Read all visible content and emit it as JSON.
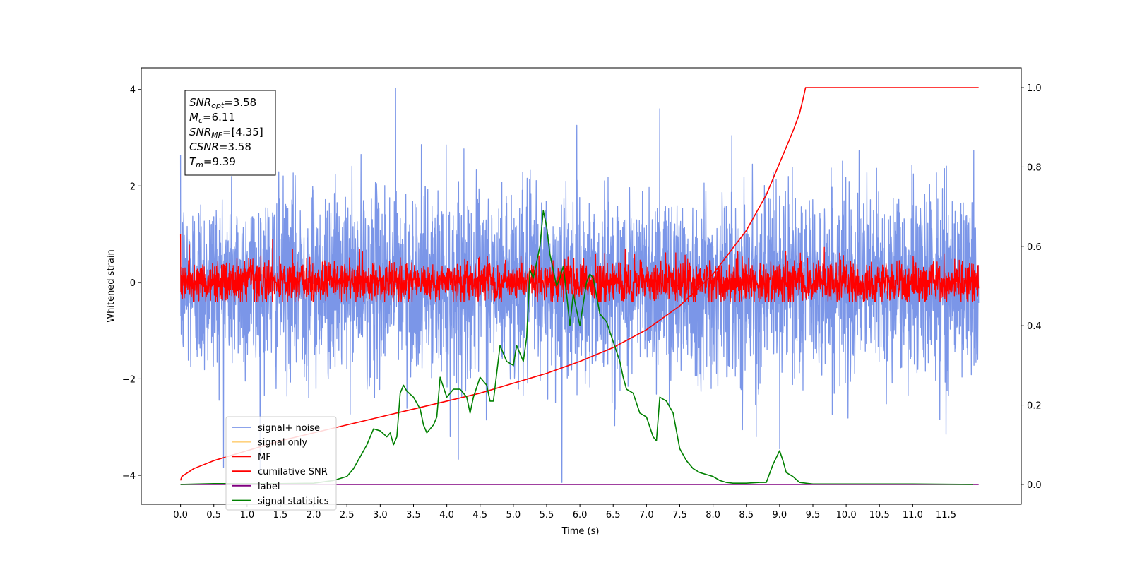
{
  "chart_data": {
    "type": "line",
    "xlabel": "Time (s)",
    "ylabel_left": "Whitened strain",
    "xlim": [
      -0.59,
      12.63
    ],
    "ylim_left": [
      -4.6,
      4.45
    ],
    "ylim_right": [
      -0.05,
      1.05
    ],
    "x_ticks": [
      "0.0",
      "0.5",
      "1.0",
      "1.5",
      "2.0",
      "2.5",
      "3.0",
      "3.5",
      "4.0",
      "4.5",
      "5.0",
      "5.5",
      "6.0",
      "6.5",
      "7.0",
      "7.5",
      "8.0",
      "8.5",
      "9.0",
      "9.5",
      "10.0",
      "10.5",
      "11.0",
      "11.5"
    ],
    "x_tick_values": [
      0,
      0.5,
      1,
      1.5,
      2,
      2.5,
      3,
      3.5,
      4,
      4.5,
      5,
      5.5,
      6,
      6.5,
      7,
      7.5,
      8,
      8.5,
      9,
      9.5,
      10,
      10.5,
      11,
      11.5
    ],
    "y_left_ticks": [
      "4",
      "2",
      "0",
      "−2",
      "−4"
    ],
    "y_left_tick_values": [
      4,
      2,
      0,
      -2,
      -4
    ],
    "y_right_ticks": [
      "1.0",
      "0.8",
      "0.6",
      "0.4",
      "0.2",
      "0.0"
    ],
    "y_right_tick_values": [
      1.0,
      0.8,
      0.6,
      0.4,
      0.2,
      0.0
    ],
    "annotation": {
      "snr_opt": {
        "base": "SNR",
        "sub": "opt",
        "value": "=3.58"
      },
      "mc": {
        "base": "M",
        "sub": "c",
        "value": "=6.11"
      },
      "snr_mf": {
        "base": "SNR",
        "sub": "MF",
        "value": "=[4.35]"
      },
      "csnr": {
        "base": "CSNR",
        "value": "=3.58"
      },
      "tm": {
        "base": "T",
        "sub": "m",
        "value": "=9.39"
      }
    },
    "legend": {
      "placement": "lower-left",
      "entries": [
        {
          "label": "signal+ noise",
          "color": "#7b96e8"
        },
        {
          "label": "signal only",
          "color": "#ffd27f"
        },
        {
          "label": "MF",
          "color": "#ff0000"
        },
        {
          "label": "cumilative SNR",
          "color": "#ff0000"
        },
        {
          "label": "label",
          "color": "#800080"
        },
        {
          "label": "signal statistics",
          "color": "#008000"
        }
      ]
    },
    "series": [
      {
        "name": "signal+ noise",
        "axis": "left",
        "color": "#7b96e8",
        "noise": {
          "x_range": [
            0,
            11.99
          ],
          "std": 0.95,
          "min": -4.15,
          "max": 4.03
        },
        "spikes": [
          {
            "x": 3.23,
            "y": 4.03
          },
          {
            "x": 7.2,
            "y": 3.6
          },
          {
            "x": 5.73,
            "y": -4.15
          },
          {
            "x": 4.05,
            "y": -3.2
          },
          {
            "x": 9.0,
            "y": -3.45
          },
          {
            "x": 8.65,
            "y": -3.2
          },
          {
            "x": 11.5,
            "y": -3.15
          }
        ]
      },
      {
        "name": "MF",
        "axis": "left",
        "color": "#ff0000",
        "noise": {
          "x_range": [
            0,
            11.99
          ],
          "std": 0.22,
          "min": -0.4,
          "max": 0.9
        },
        "start": {
          "x": 0.0,
          "y": 1.0
        }
      },
      {
        "name": "cumilative SNR",
        "axis": "right",
        "color": "#ff0000",
        "x": [
          0.0,
          0.02,
          0.2,
          0.5,
          1.0,
          1.5,
          2.0,
          2.5,
          3.0,
          3.5,
          4.0,
          4.5,
          5.0,
          5.5,
          6.0,
          6.5,
          7.0,
          7.5,
          8.0,
          8.5,
          8.8,
          9.0,
          9.2,
          9.3,
          9.35,
          9.39,
          9.5,
          11.99
        ],
        "y": [
          0.01,
          0.02,
          0.04,
          0.06,
          0.085,
          0.11,
          0.13,
          0.15,
          0.17,
          0.19,
          0.21,
          0.23,
          0.255,
          0.28,
          0.31,
          0.345,
          0.39,
          0.45,
          0.53,
          0.64,
          0.73,
          0.81,
          0.89,
          0.935,
          0.97,
          1.0,
          1.0,
          1.0
        ]
      },
      {
        "name": "label",
        "axis": "right",
        "color": "#800080",
        "x": [
          0.0,
          11.99
        ],
        "y": [
          0.0,
          0.0
        ]
      },
      {
        "name": "signal statistics",
        "axis": "right",
        "color": "#008000",
        "x": [
          0.0,
          0.5,
          1.0,
          1.5,
          2.0,
          2.3,
          2.5,
          2.6,
          2.7,
          2.8,
          2.9,
          3.0,
          3.1,
          3.15,
          3.2,
          3.25,
          3.3,
          3.35,
          3.4,
          3.5,
          3.6,
          3.65,
          3.7,
          3.8,
          3.85,
          3.9,
          4.0,
          4.1,
          4.2,
          4.3,
          4.35,
          4.4,
          4.5,
          4.6,
          4.65,
          4.7,
          4.8,
          4.9,
          5.0,
          5.05,
          5.1,
          5.15,
          5.2,
          5.25,
          5.3,
          5.4,
          5.45,
          5.5,
          5.55,
          5.6,
          5.65,
          5.7,
          5.75,
          5.8,
          5.85,
          5.9,
          6.0,
          6.1,
          6.15,
          6.2,
          6.3,
          6.4,
          6.5,
          6.6,
          6.65,
          6.7,
          6.8,
          6.9,
          7.0,
          7.1,
          7.15,
          7.2,
          7.3,
          7.4,
          7.5,
          7.6,
          7.7,
          7.8,
          7.9,
          8.0,
          8.1,
          8.2,
          8.3,
          8.5,
          8.7,
          8.8,
          8.9,
          9.0,
          9.05,
          9.1,
          9.2,
          9.3,
          9.5,
          10.0,
          10.5,
          11.0,
          11.9
        ],
        "y": [
          0.0,
          0.002,
          0.002,
          0.002,
          0.003,
          0.01,
          0.02,
          0.04,
          0.07,
          0.1,
          0.14,
          0.135,
          0.12,
          0.13,
          0.1,
          0.12,
          0.23,
          0.25,
          0.235,
          0.22,
          0.19,
          0.15,
          0.13,
          0.15,
          0.17,
          0.27,
          0.22,
          0.24,
          0.24,
          0.22,
          0.18,
          0.22,
          0.27,
          0.25,
          0.21,
          0.21,
          0.35,
          0.31,
          0.3,
          0.35,
          0.33,
          0.31,
          0.37,
          0.54,
          0.52,
          0.6,
          0.69,
          0.65,
          0.58,
          0.54,
          0.5,
          0.52,
          0.55,
          0.48,
          0.4,
          0.48,
          0.4,
          0.51,
          0.53,
          0.52,
          0.43,
          0.41,
          0.36,
          0.31,
          0.27,
          0.24,
          0.23,
          0.18,
          0.17,
          0.12,
          0.11,
          0.22,
          0.21,
          0.18,
          0.09,
          0.06,
          0.04,
          0.03,
          0.025,
          0.02,
          0.01,
          0.005,
          0.003,
          0.003,
          0.005,
          0.005,
          0.05,
          0.085,
          0.06,
          0.03,
          0.02,
          0.005,
          0.001,
          0.001,
          0.001,
          0.001,
          0.0
        ]
      }
    ]
  }
}
